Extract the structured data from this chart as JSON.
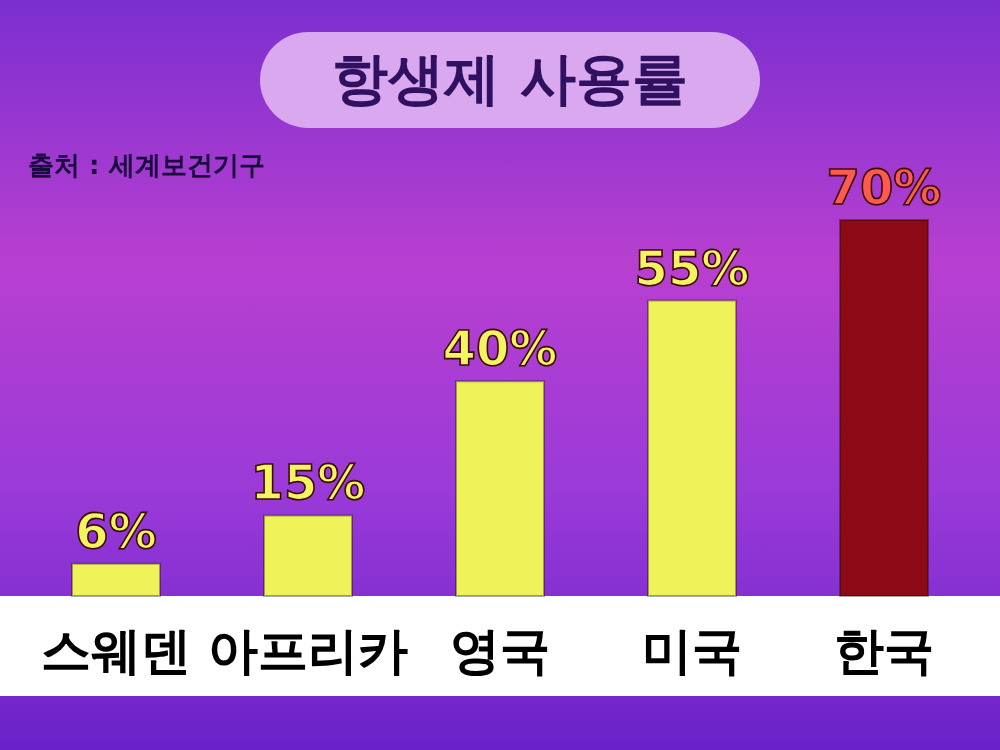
{
  "chart_data": {
    "type": "bar",
    "title": "항생제 사용률",
    "annotations": [
      "출처 : 세계보건기구"
    ],
    "categories": [
      "스웨덴",
      "아프리카",
      "영국",
      "미국",
      "한국"
    ],
    "values": [
      6,
      15,
      40,
      55,
      70
    ],
    "colors": [
      "#f0f25a",
      "#f0f25a",
      "#f0f25a",
      "#f0f25a",
      "#8c0a14"
    ],
    "value_labels": [
      "6%",
      "15%",
      "40%",
      "55%",
      "70%"
    ],
    "grid": false,
    "legend": false
  }
}
